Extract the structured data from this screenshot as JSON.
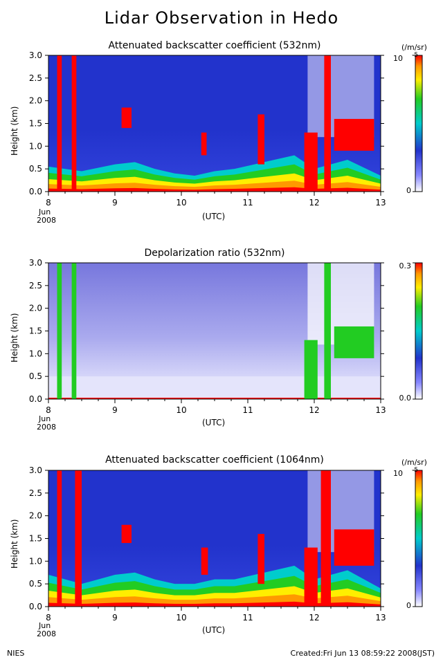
{
  "title": "Lidar Observation in Hedo",
  "footer": {
    "left": "NIES",
    "right": "Created:Fri Jun 13 08:59:22 2008(JST)"
  },
  "colors": {
    "white": "#ffffff",
    "blue": "#2233cc",
    "cyan": "#00cccc",
    "green": "#22cc22",
    "yellow": "#ffee00",
    "orange": "#ff9900",
    "red": "#ff0000"
  },
  "chart_data": [
    {
      "type": "heatmap",
      "title": "Attenuated backscatter coefficient (532nm)",
      "ylabel": "Height (km)",
      "xlabel": "(UTC)",
      "x_ticks": [
        "8",
        "9",
        "10",
        "11",
        "12",
        "13"
      ],
      "x_sub_labels": [
        "Jun",
        "2008"
      ],
      "xlim": [
        8,
        13
      ],
      "ylim": [
        0.0,
        3.0
      ],
      "y_ticks": [
        "0.0",
        "0.5",
        "1.0",
        "1.5",
        "2.0",
        "2.5",
        "3.0"
      ],
      "colorbar": {
        "unit": "(/m/sr)",
        "max_label": "10",
        "max_exponent": "-5",
        "min_label": "0",
        "scale": "linear"
      },
      "boundary_layer_top_km": [
        [
          8.0,
          0.55
        ],
        [
          8.5,
          0.45
        ],
        [
          9.0,
          0.6
        ],
        [
          9.3,
          0.65
        ],
        [
          9.6,
          0.5
        ],
        [
          9.9,
          0.4
        ],
        [
          10.2,
          0.35
        ],
        [
          10.5,
          0.45
        ],
        [
          10.8,
          0.5
        ],
        [
          11.1,
          0.6
        ],
        [
          11.4,
          0.7
        ],
        [
          11.7,
          0.8
        ],
        [
          12.0,
          0.5
        ],
        [
          12.5,
          0.7
        ],
        [
          13.0,
          0.35
        ]
      ],
      "clouds": [
        {
          "x": [
            8.13,
            8.2
          ],
          "y": [
            0.0,
            3.0
          ],
          "level": "high"
        },
        {
          "x": [
            8.35,
            8.42
          ],
          "y": [
            0.0,
            3.0
          ],
          "level": "high"
        },
        {
          "x": [
            9.1,
            9.25
          ],
          "y": [
            1.4,
            1.85
          ],
          "level": "high"
        },
        {
          "x": [
            10.3,
            10.38
          ],
          "y": [
            0.8,
            1.3
          ],
          "level": "high"
        },
        {
          "x": [
            11.15,
            11.25
          ],
          "y": [
            0.6,
            1.7
          ],
          "level": "high"
        },
        {
          "x": [
            11.85,
            12.05
          ],
          "y": [
            0.0,
            1.3
          ],
          "level": "high"
        },
        {
          "x": [
            12.15,
            12.25
          ],
          "y": [
            0.0,
            3.0
          ],
          "level": "high"
        },
        {
          "x": [
            12.3,
            12.9
          ],
          "y": [
            0.9,
            1.6
          ],
          "level": "high"
        }
      ],
      "low_signal_region": {
        "x": [
          11.9,
          12.9
        ],
        "y": [
          1.2,
          3.0
        ]
      }
    },
    {
      "type": "heatmap",
      "title": "Depolarization ratio (532nm)",
      "ylabel": "Height (km)",
      "xlabel": "(UTC)",
      "x_ticks": [
        "8",
        "9",
        "10",
        "11",
        "12",
        "13"
      ],
      "x_sub_labels": [
        "Jun",
        "2008"
      ],
      "xlim": [
        8,
        13
      ],
      "ylim": [
        0.0,
        3.0
      ],
      "y_ticks": [
        "0.0",
        "0.5",
        "1.0",
        "1.5",
        "2.0",
        "2.5",
        "3.0"
      ],
      "colorbar": {
        "unit": "",
        "max_label": "0.3",
        "min_label": "0.0",
        "scale": "linear"
      },
      "clouds": [
        {
          "x": [
            8.13,
            8.2
          ],
          "y": [
            0.0,
            3.0
          ],
          "level": "mid"
        },
        {
          "x": [
            8.35,
            8.42
          ],
          "y": [
            0.0,
            3.0
          ],
          "level": "mid"
        },
        {
          "x": [
            11.85,
            12.05
          ],
          "y": [
            0.0,
            1.3
          ],
          "level": "mid"
        },
        {
          "x": [
            12.15,
            12.25
          ],
          "y": [
            0.0,
            3.0
          ],
          "level": "mid"
        },
        {
          "x": [
            12.3,
            12.9
          ],
          "y": [
            0.9,
            1.6
          ],
          "level": "mid"
        }
      ],
      "low_signal_region": {
        "x": [
          11.9,
          12.9
        ],
        "y": [
          1.2,
          3.0
        ]
      }
    },
    {
      "type": "heatmap",
      "title": "Attenuated backscatter coefficient (1064nm)",
      "ylabel": "Height (km)",
      "xlabel": "(UTC)",
      "x_ticks": [
        "8",
        "9",
        "10",
        "11",
        "12",
        "13"
      ],
      "x_sub_labels": [
        "Jun",
        "2008"
      ],
      "xlim": [
        8,
        13
      ],
      "ylim": [
        0.0,
        3.0
      ],
      "y_ticks": [
        "0.0",
        "0.5",
        "1.0",
        "1.5",
        "2.0",
        "2.5",
        "3.0"
      ],
      "colorbar": {
        "unit": "(/m/sr)",
        "max_label": "10",
        "max_exponent": "-5",
        "min_label": "0",
        "scale": "linear"
      },
      "boundary_layer_top_km": [
        [
          8.0,
          0.7
        ],
        [
          8.5,
          0.5
        ],
        [
          9.0,
          0.7
        ],
        [
          9.3,
          0.75
        ],
        [
          9.6,
          0.6
        ],
        [
          9.9,
          0.5
        ],
        [
          10.2,
          0.5
        ],
        [
          10.5,
          0.6
        ],
        [
          10.8,
          0.6
        ],
        [
          11.1,
          0.7
        ],
        [
          11.4,
          0.8
        ],
        [
          11.7,
          0.9
        ],
        [
          12.0,
          0.6
        ],
        [
          12.5,
          0.8
        ],
        [
          13.0,
          0.4
        ]
      ],
      "clouds": [
        {
          "x": [
            8.13,
            8.2
          ],
          "y": [
            0.0,
            3.0
          ],
          "level": "high"
        },
        {
          "x": [
            8.4,
            8.5
          ],
          "y": [
            0.0,
            3.0
          ],
          "level": "high"
        },
        {
          "x": [
            9.1,
            9.25
          ],
          "y": [
            1.4,
            1.8
          ],
          "level": "high"
        },
        {
          "x": [
            10.3,
            10.4
          ],
          "y": [
            0.7,
            1.3
          ],
          "level": "high"
        },
        {
          "x": [
            11.15,
            11.25
          ],
          "y": [
            0.5,
            1.6
          ],
          "level": "high"
        },
        {
          "x": [
            11.85,
            12.05
          ],
          "y": [
            0.0,
            1.3
          ],
          "level": "high"
        },
        {
          "x": [
            12.1,
            12.25
          ],
          "y": [
            0.0,
            3.0
          ],
          "level": "high"
        },
        {
          "x": [
            12.3,
            12.9
          ],
          "y": [
            0.9,
            1.7
          ],
          "level": "high"
        }
      ],
      "low_signal_region": {
        "x": [
          11.9,
          12.9
        ],
        "y": [
          1.2,
          3.0
        ]
      }
    }
  ]
}
